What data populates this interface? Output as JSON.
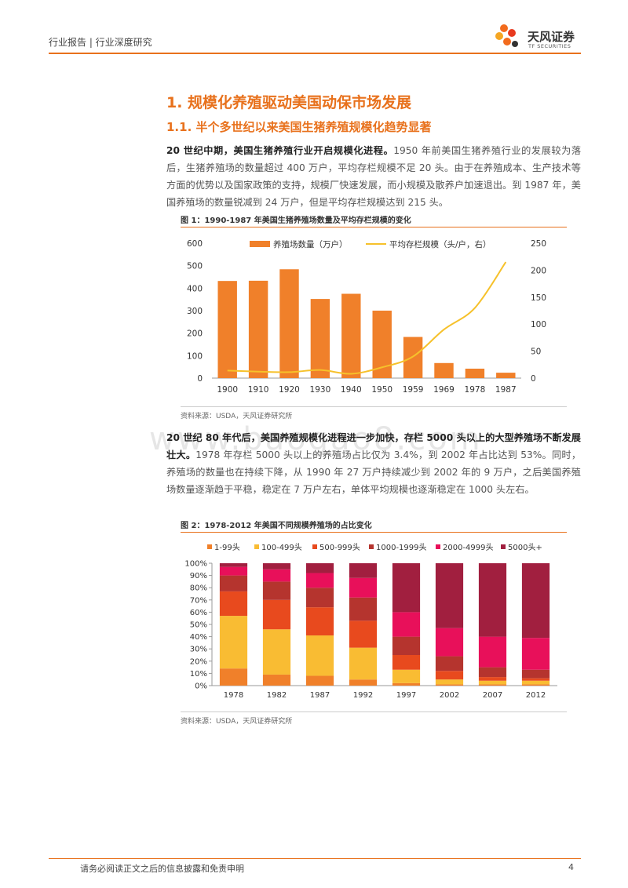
{
  "header": {
    "breadcrumb": "行业报告 | 行业深度研究"
  },
  "logo": {
    "name": "天风证券",
    "sub": "TF SECURITIES"
  },
  "section": {
    "h1": "1. 规模化养殖驱动美国动保市场发展",
    "h2": "1.1. 半个多世纪以来美国生猪养殖规模化趋势显著"
  },
  "para1": {
    "bold": "20 世纪中期，美国生猪养殖行业开启规模化进程。",
    "text": "1950 年前美国生猪养殖行业的发展较为落后，生猪养殖场的数量超过 400 万户，平均存栏规模不足 20 头。由于在养殖成本、生产技术等方面的优势以及国家政策的支持，规模厂快速发展，而小规模及散养户加速退出。到 1987 年，美国养殖场的数量锐减到 24 万户，但是平均存栏规模达到 215 头。"
  },
  "figure1": {
    "title": "图 1：1990-1987 年美国生猪养殖场数量及平均存栏规模的变化",
    "source": "资料来源：USDA，天风证券研究所"
  },
  "para2": {
    "bold": "20 世纪 80 年代后，美国养殖规模化进程进一步加快，存栏 5000 头以上的大型养殖场不断发展壮大。",
    "text": "1978 年存栏 5000 头以上的养殖场占比仅为 3.4%，到 2002 年占比达到 53%。同时，养殖场的数量也在持续下降，从 1990 年 27 万户持续减少到 2002 年的 9 万户，之后美国养殖场数量逐渐趋于平稳，稳定在 7 万户左右，单体平均规模也逐渐稳定在 1000 头左右。"
  },
  "figure2": {
    "title": "图 2：1978-2012 年美国不同规模养殖场的占比变化",
    "source": "资料来源：USDA，天风证券研究所"
  },
  "watermark": "www.baogao8.com",
  "footer": {
    "disclaimer": "请务必阅读正文之后的信息披露和免责申明",
    "page": "4"
  },
  "chart_data": [
    {
      "type": "bar",
      "categories": [
        "1900",
        "1910",
        "1920",
        "1930",
        "1940",
        "1950",
        "1959",
        "1969",
        "1978",
        "1987"
      ],
      "series": [
        {
          "name": "养殖场数量（万户）",
          "kind": "bar",
          "axis": "left",
          "color": "#f0802a",
          "values": [
            432,
            433,
            484,
            352,
            375,
            300,
            183,
            67,
            42,
            24
          ]
        },
        {
          "name": "平均存栏规模（头/户，右）",
          "kind": "line",
          "axis": "right",
          "color": "#f6c12b",
          "values": [
            14,
            12,
            11,
            15,
            8,
            20,
            40,
            90,
            130,
            215
          ]
        }
      ],
      "ylim_left": [
        0,
        600
      ],
      "yticks_left": [
        0,
        100,
        200,
        300,
        400,
        500,
        600
      ],
      "ylim_right": [
        0,
        250
      ],
      "yticks_right": [
        0,
        50,
        100,
        150,
        200,
        250
      ],
      "legend": "top"
    },
    {
      "type": "bar",
      "stacked": true,
      "categories": [
        "1978",
        "1982",
        "1987",
        "1992",
        "1997",
        "2002",
        "2007",
        "2012"
      ],
      "series": [
        {
          "name": "1-99头",
          "color": "#f0802a",
          "values": [
            14,
            9,
            8,
            5,
            2,
            1,
            1,
            1
          ]
        },
        {
          "name": "100-499头",
          "color": "#f9bc33",
          "values": [
            43,
            37,
            33,
            26,
            11,
            4,
            3,
            3
          ]
        },
        {
          "name": "500-999头",
          "color": "#e84a1e",
          "values": [
            20,
            24,
            23,
            22,
            12,
            7,
            3,
            2
          ]
        },
        {
          "name": "1000-1999头",
          "color": "#b5342e",
          "values": [
            13,
            15,
            16,
            19,
            15,
            12,
            8,
            7
          ]
        },
        {
          "name": "2000-4999头",
          "color": "#e8105a",
          "values": [
            7,
            10,
            12,
            16,
            20,
            23,
            25,
            26
          ]
        },
        {
          "name": "5000头+",
          "color": "#a11f3f",
          "values": [
            3,
            5,
            8,
            12,
            40,
            53,
            60,
            61
          ]
        }
      ],
      "ylim": [
        0,
        100
      ],
      "yticks": [
        "0%",
        "10%",
        "20%",
        "30%",
        "40%",
        "50%",
        "60%",
        "70%",
        "80%",
        "90%",
        "100%"
      ],
      "legend": "top"
    }
  ]
}
